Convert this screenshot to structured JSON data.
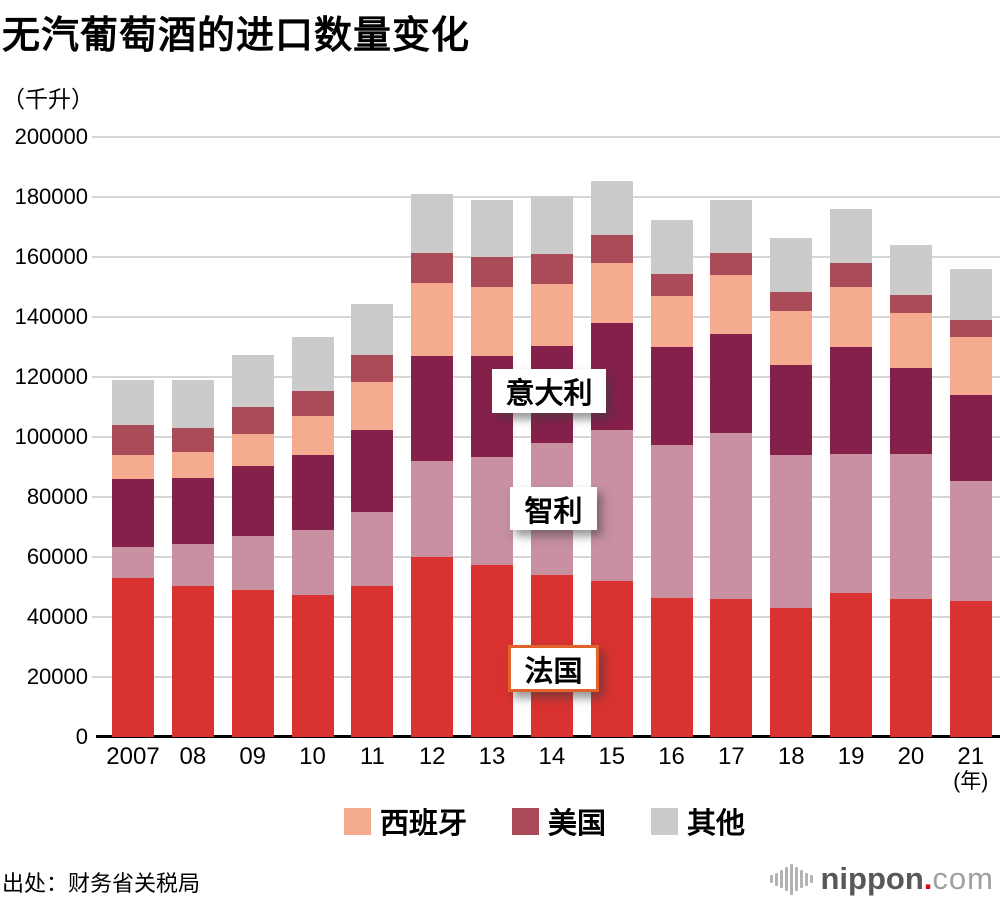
{
  "title": "无汽葡萄酒的进口数量变化",
  "unit_label": "（千升）",
  "source": "出处：财务省关税局",
  "logo": {
    "icon": "waveform-icon",
    "name": "nippon",
    "dot": ".",
    "tld": "com",
    "dot_color": "#e60012"
  },
  "chart_data": {
    "type": "bar",
    "stacked": true,
    "title": "无汽葡萄酒的进口数量变化",
    "ylabel": "（千升）",
    "xlabel": "年",
    "x_axis_suffix": "(年)",
    "ylim": [
      0,
      200000
    ],
    "ytick_step": 20000,
    "yticks": [
      0,
      20000,
      40000,
      60000,
      80000,
      100000,
      120000,
      140000,
      160000,
      180000,
      200000
    ],
    "grid": true,
    "legend_position": "bottom",
    "categories": [
      "2007",
      "08",
      "09",
      "10",
      "11",
      "12",
      "13",
      "14",
      "15",
      "16",
      "17",
      "18",
      "19",
      "20",
      "21"
    ],
    "series": [
      {
        "name": "法国",
        "color": "#d93230",
        "values": [
          53000,
          50500,
          49000,
          47500,
          50500,
          60000,
          57500,
          54000,
          52000,
          46500,
          46000,
          43000,
          48000,
          46000,
          45500
        ]
      },
      {
        "name": "智利",
        "color": "#c890a1",
        "values": [
          10500,
          14000,
          18000,
          21500,
          24500,
          32000,
          36000,
          44000,
          50500,
          51000,
          55500,
          51000,
          46500,
          48500,
          40000
        ]
      },
      {
        "name": "意大利",
        "color": "#85204b",
        "values": [
          22500,
          22000,
          23500,
          25000,
          27500,
          35000,
          33500,
          32500,
          35500,
          32500,
          33000,
          30000,
          35500,
          28500,
          28500
        ]
      },
      {
        "name": "西班牙",
        "color": "#f4ab90",
        "values": [
          8000,
          8500,
          10500,
          13000,
          16000,
          24500,
          23000,
          20500,
          20000,
          17000,
          19500,
          18000,
          20000,
          18500,
          19500
        ]
      },
      {
        "name": "美国",
        "color": "#ab4a59",
        "values": [
          10000,
          8000,
          9000,
          8500,
          9000,
          10000,
          10000,
          10000,
          9500,
          7500,
          7500,
          6500,
          8000,
          6000,
          5500
        ]
      },
      {
        "name": "其他",
        "color": "#cbcbcb",
        "values": [
          15000,
          16000,
          17500,
          18000,
          17000,
          19500,
          19000,
          19500,
          18000,
          18000,
          17500,
          18000,
          18000,
          16500,
          17000
        ]
      }
    ],
    "legend": [
      {
        "label": "西班牙",
        "color": "#f4ab90"
      },
      {
        "label": "美国",
        "color": "#ab4a59"
      },
      {
        "label": "其他",
        "color": "#cbcbcb"
      }
    ],
    "annotations": [
      {
        "text": "意大利",
        "series": "意大利",
        "bordered": false
      },
      {
        "text": "智利",
        "series": "智利",
        "bordered": false
      },
      {
        "text": "法国",
        "series": "法国",
        "bordered": true,
        "border_color": "#e2622b"
      }
    ]
  }
}
